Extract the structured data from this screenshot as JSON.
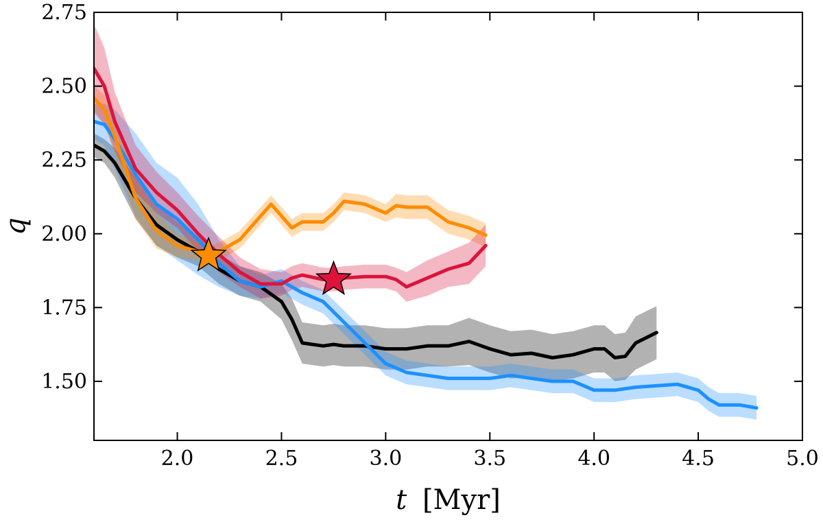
{
  "chart_data": {
    "type": "line",
    "title": "",
    "xlabel_var": "t",
    "xlabel_unit": "[Myr]",
    "ylabel": "q",
    "xlim": [
      1.6,
      5.0
    ],
    "ylim": [
      1.3,
      2.75
    ],
    "xticks": [
      2.0,
      2.5,
      3.0,
      3.5,
      4.0,
      4.5,
      5.0
    ],
    "xtick_labels": [
      "2.0",
      "2.5",
      "3.0",
      "3.5",
      "4.0",
      "4.5",
      "5.0"
    ],
    "yticks": [
      1.5,
      1.75,
      2.0,
      2.25,
      2.5,
      2.75
    ],
    "ytick_labels": [
      "1.50",
      "1.75",
      "2.00",
      "2.25",
      "2.50",
      "2.75"
    ],
    "grid": false,
    "series": [
      {
        "color": "#000000",
        "x": [
          1.6,
          1.65,
          1.7,
          1.8,
          1.9,
          2.0,
          2.1,
          2.2,
          2.3,
          2.4,
          2.5,
          2.55,
          2.6,
          2.7,
          2.75,
          2.8,
          2.9,
          3.0,
          3.1,
          3.2,
          3.3,
          3.4,
          3.5,
          3.6,
          3.7,
          3.8,
          3.9,
          4.0,
          4.05,
          4.1,
          4.15,
          4.2,
          4.3
        ],
        "y": [
          2.3,
          2.28,
          2.24,
          2.12,
          2.03,
          1.98,
          1.94,
          1.88,
          1.84,
          1.82,
          1.77,
          1.71,
          1.63,
          1.62,
          1.625,
          1.62,
          1.62,
          1.61,
          1.61,
          1.62,
          1.62,
          1.635,
          1.61,
          1.59,
          1.595,
          1.58,
          1.59,
          1.61,
          1.61,
          1.58,
          1.585,
          1.63,
          1.665
        ],
        "band_width": [
          0.04,
          0.04,
          0.05,
          0.07,
          0.07,
          0.06,
          0.05,
          0.05,
          0.05,
          0.05,
          0.06,
          0.07,
          0.07,
          0.07,
          0.07,
          0.07,
          0.07,
          0.07,
          0.07,
          0.07,
          0.07,
          0.08,
          0.08,
          0.08,
          0.08,
          0.08,
          0.08,
          0.08,
          0.08,
          0.08,
          0.08,
          0.09,
          0.09
        ]
      },
      {
        "color": "#1e90ff",
        "x": [
          1.6,
          1.65,
          1.7,
          1.8,
          1.9,
          2.0,
          2.1,
          2.2,
          2.3,
          2.4,
          2.5,
          2.6,
          2.7,
          2.8,
          2.9,
          3.0,
          3.1,
          3.2,
          3.3,
          3.4,
          3.5,
          3.6,
          3.7,
          3.8,
          3.9,
          4.0,
          4.1,
          4.2,
          4.3,
          4.4,
          4.5,
          4.55,
          4.6,
          4.7,
          4.78
        ],
        "y": [
          2.38,
          2.37,
          2.32,
          2.2,
          2.1,
          2.05,
          1.98,
          1.9,
          1.84,
          1.82,
          1.84,
          1.8,
          1.77,
          1.7,
          1.63,
          1.56,
          1.53,
          1.52,
          1.51,
          1.51,
          1.51,
          1.52,
          1.51,
          1.5,
          1.5,
          1.47,
          1.47,
          1.48,
          1.485,
          1.49,
          1.47,
          1.44,
          1.42,
          1.42,
          1.41
        ],
        "band_width": [
          0.06,
          0.07,
          0.1,
          0.14,
          0.14,
          0.14,
          0.12,
          0.08,
          0.05,
          0.04,
          0.04,
          0.04,
          0.04,
          0.04,
          0.04,
          0.04,
          0.04,
          0.04,
          0.04,
          0.04,
          0.04,
          0.04,
          0.04,
          0.04,
          0.04,
          0.04,
          0.04,
          0.04,
          0.04,
          0.04,
          0.04,
          0.04,
          0.04,
          0.04,
          0.04
        ]
      },
      {
        "color": "#ff8c00",
        "x": [
          1.6,
          1.65,
          1.7,
          1.8,
          1.9,
          2.0,
          2.1,
          2.15,
          2.2,
          2.3,
          2.4,
          2.45,
          2.5,
          2.55,
          2.6,
          2.7,
          2.75,
          2.8,
          2.9,
          3.0,
          3.05,
          3.1,
          3.2,
          3.3,
          3.4,
          3.48
        ],
        "y": [
          2.46,
          2.42,
          2.33,
          2.12,
          2.01,
          1.96,
          1.94,
          1.925,
          1.94,
          1.98,
          2.06,
          2.1,
          2.06,
          2.02,
          2.04,
          2.04,
          2.07,
          2.11,
          2.1,
          2.07,
          2.095,
          2.09,
          2.09,
          2.04,
          2.02,
          1.995
        ],
        "band_width": [
          0.04,
          0.05,
          0.06,
          0.07,
          0.06,
          0.04,
          0.03,
          0.03,
          0.03,
          0.03,
          0.03,
          0.03,
          0.03,
          0.03,
          0.03,
          0.03,
          0.03,
          0.03,
          0.03,
          0.03,
          0.04,
          0.04,
          0.04,
          0.04,
          0.04,
          0.04
        ]
      },
      {
        "color": "#dc143c",
        "x": [
          1.6,
          1.65,
          1.7,
          1.8,
          1.9,
          2.0,
          2.1,
          2.2,
          2.3,
          2.4,
          2.5,
          2.55,
          2.6,
          2.7,
          2.75,
          2.8,
          2.9,
          3.0,
          3.05,
          3.1,
          3.2,
          3.3,
          3.4,
          3.48
        ],
        "y": [
          2.56,
          2.5,
          2.38,
          2.22,
          2.14,
          2.08,
          2.0,
          1.93,
          1.87,
          1.83,
          1.83,
          1.85,
          1.86,
          1.845,
          1.845,
          1.85,
          1.855,
          1.855,
          1.845,
          1.82,
          1.85,
          1.88,
          1.9,
          1.96
        ],
        "band_width": [
          0.15,
          0.13,
          0.1,
          0.08,
          0.07,
          0.06,
          0.06,
          0.06,
          0.05,
          0.05,
          0.04,
          0.04,
          0.04,
          0.04,
          0.04,
          0.04,
          0.04,
          0.04,
          0.04,
          0.05,
          0.06,
          0.06,
          0.07,
          0.07
        ]
      }
    ],
    "markers": [
      {
        "x": 2.15,
        "y": 1.925,
        "color": "#ff8c00",
        "shape": "star"
      },
      {
        "x": 2.75,
        "y": 1.845,
        "color": "#dc143c",
        "shape": "star"
      }
    ]
  }
}
